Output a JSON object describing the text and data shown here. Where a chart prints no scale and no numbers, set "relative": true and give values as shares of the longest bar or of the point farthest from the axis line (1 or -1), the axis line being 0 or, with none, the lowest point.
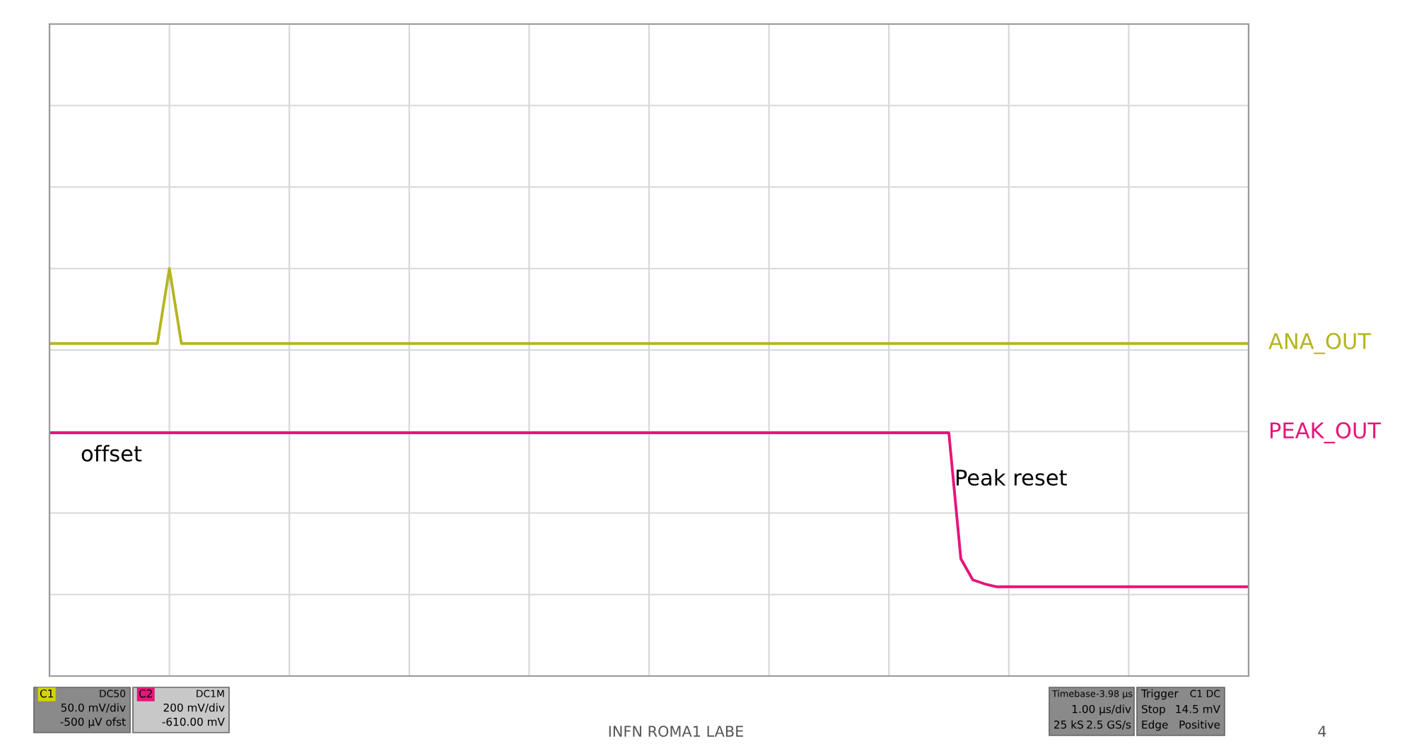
{
  "chart_data": {
    "type": "line",
    "relative": true,
    "grid": true,
    "legend": false,
    "tick_labels": false,
    "categories": [
      null,
      null,
      null,
      null,
      null,
      null,
      null,
      null,
      null,
      null,
      null,
      null,
      null,
      null,
      null,
      null,
      null,
      null,
      null,
      null,
      null,
      null,
      null,
      null,
      null,
      null,
      null,
      null,
      null,
      null,
      null,
      null,
      null,
      null,
      null,
      null,
      null,
      null,
      null,
      null,
      null,
      null,
      null,
      null,
      null,
      null,
      null,
      null,
      null,
      null,
      null,
      null,
      null,
      null,
      null,
      null,
      null,
      null,
      null,
      null,
      null,
      null,
      null,
      null,
      null,
      null,
      null,
      null,
      null,
      null,
      null,
      null,
      null,
      null,
      null,
      null,
      null,
      null,
      null,
      null,
      null,
      null,
      null,
      null,
      null,
      null,
      null,
      null,
      null,
      null,
      null,
      null,
      null,
      null,
      null,
      null,
      null,
      null,
      null,
      null,
      null
    ],
    "series": [
      {
        "name": "ANA_OUT",
        "color": "#b5b520",
        "values": [
          0.816,
          0.816,
          0.816,
          0.816,
          0.816,
          0.816,
          0.816,
          0.816,
          0.816,
          0.816,
          1,
          0.816,
          0.816,
          0.816,
          0.816,
          0.816,
          0.816,
          0.816,
          0.816,
          0.816,
          0.816,
          0.816,
          0.816,
          0.816,
          0.816,
          0.816,
          0.816,
          0.816,
          0.816,
          0.816,
          0.816,
          0.816,
          0.816,
          0.816,
          0.816,
          0.816,
          0.816,
          0.816,
          0.816,
          0.816,
          0.816,
          0.816,
          0.816,
          0.816,
          0.816,
          0.816,
          0.816,
          0.816,
          0.816,
          0.816,
          0.816,
          0.816,
          0.816,
          0.816,
          0.816,
          0.816,
          0.816,
          0.816,
          0.816,
          0.816,
          0.816,
          0.816,
          0.816,
          0.816,
          0.816,
          0.816,
          0.816,
          0.816,
          0.816,
          0.816,
          0.816,
          0.816,
          0.816,
          0.816,
          0.816,
          0.816,
          0.816,
          0.816,
          0.816,
          0.816,
          0.816,
          0.816,
          0.816,
          0.816,
          0.816,
          0.816,
          0.816,
          0.816,
          0.816,
          0.816,
          0.816,
          0.816,
          0.816,
          0.816,
          0.816,
          0.816,
          0.816,
          0.816,
          0.816,
          0.816,
          0.816
        ]
      },
      {
        "name": "PEAK_OUT",
        "color": "#e6157a",
        "values": [
          0.597,
          0.597,
          0.597,
          0.597,
          0.597,
          0.597,
          0.597,
          0.597,
          0.597,
          0.597,
          0.597,
          0.597,
          0.597,
          0.597,
          0.597,
          0.597,
          0.597,
          0.597,
          0.597,
          0.597,
          0.597,
          0.597,
          0.597,
          0.597,
          0.597,
          0.597,
          0.597,
          0.597,
          0.597,
          0.597,
          0.597,
          0.597,
          0.597,
          0.597,
          0.597,
          0.597,
          0.597,
          0.597,
          0.597,
          0.597,
          0.597,
          0.597,
          0.597,
          0.597,
          0.597,
          0.597,
          0.597,
          0.597,
          0.597,
          0.597,
          0.597,
          0.597,
          0.597,
          0.597,
          0.597,
          0.597,
          0.597,
          0.597,
          0.597,
          0.597,
          0.597,
          0.597,
          0.597,
          0.597,
          0.597,
          0.597,
          0.597,
          0.597,
          0.597,
          0.597,
          0.597,
          0.597,
          0.597,
          0.597,
          0.597,
          0.597,
          0.288,
          0.236,
          0.226,
          0.219,
          0.219,
          0.219,
          0.219,
          0.219,
          0.219,
          0.219,
          0.219,
          0.219,
          0.219,
          0.219,
          0.219,
          0.219,
          0.219,
          0.219,
          0.219,
          0.219,
          0.219,
          0.219,
          0.219,
          0.219,
          0.219
        ]
      }
    ],
    "annotations": [
      "offset",
      "Peak reset",
      "INFN ROMA1 LABE",
      "4",
      "C1",
      "DC50",
      "50.0 mV/div",
      "-500 µV ofst",
      "C2",
      "DC1M",
      "200 mV/div",
      "-610.00 mV",
      "Timebase",
      "-3.98 µs",
      "1.00 µs/div",
      "25 kS",
      "2.5 GS/s",
      "Trigger",
      "C1 DC",
      "Stop",
      "14.5 mV",
      "Edge",
      "Positive"
    ]
  }
}
